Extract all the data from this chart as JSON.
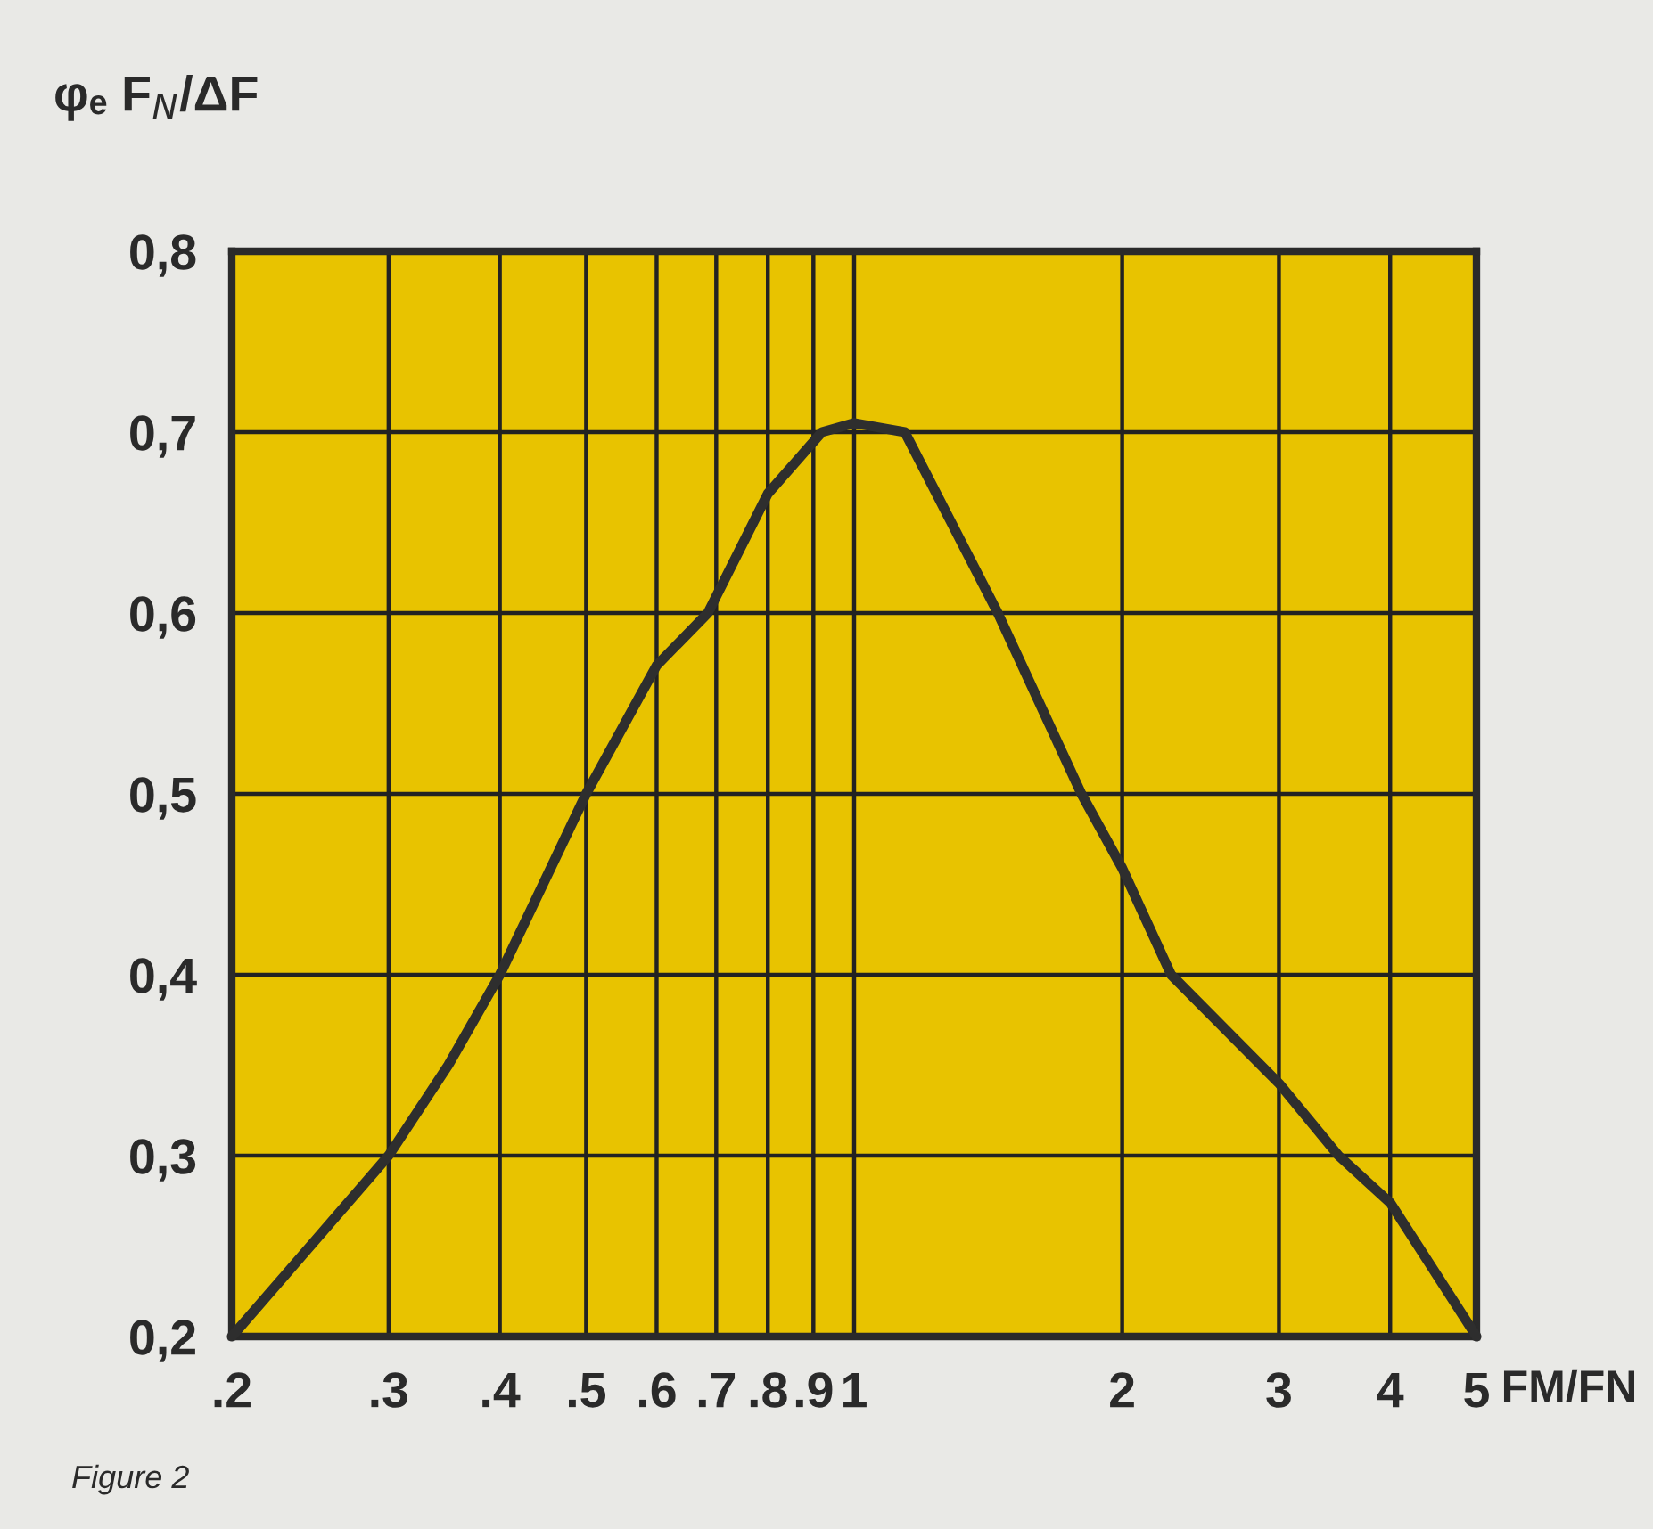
{
  "chart_data": {
    "type": "line",
    "ylabel": "φₑ F$_{N}$/ΔF",
    "xlabel": "FM/FN",
    "annotations": [
      "Figure 2"
    ],
    "log": "x",
    "grid": true,
    "marker": "none",
    "line_style": "solid",
    "x": [
      0.2,
      0.25,
      0.3,
      0.35,
      0.4,
      0.5,
      0.6,
      0.685,
      0.8,
      0.92,
      1.0,
      1.14,
      1.45,
      1.8,
      2,
      2.27,
      3,
      3.5,
      4,
      5
    ],
    "series": [
      {
        "color": "#2e2e2e",
        "values": [
          0.2,
          0.255,
          0.3,
          0.35,
          0.4,
          0.5,
          0.571,
          0.6,
          0.666,
          0.7,
          0.705,
          0.7,
          0.6,
          0.5,
          0.459,
          0.4,
          0.34,
          0.3,
          0.274,
          0.2
        ]
      }
    ],
    "xlim": [
      0.2,
      5
    ],
    "xticks": [
      {
        "value": 0.2,
        "label": ".2"
      },
      {
        "value": 0.3,
        "label": ".3"
      },
      {
        "value": 0.4,
        "label": ".4"
      },
      {
        "value": 0.5,
        "label": ".5"
      },
      {
        "value": 0.6,
        "label": ".6"
      },
      {
        "value": 0.7,
        "label": ".7"
      },
      {
        "value": 0.8,
        "label": ".8"
      },
      {
        "value": 0.9,
        "label": ".9"
      },
      1,
      2,
      3,
      4,
      5
    ],
    "ylim": [
      0.2,
      0.8
    ],
    "yticks": [
      {
        "value": 0.2,
        "label": "0,2"
      },
      {
        "value": 0.3,
        "label": "0,3"
      },
      {
        "value": 0.4,
        "label": "0,4"
      },
      {
        "value": 0.5,
        "label": "0,5"
      },
      {
        "value": 0.6,
        "label": "0,6"
      },
      {
        "value": 0.7,
        "label": "0,7"
      },
      {
        "value": 0.8,
        "label": "0,8"
      }
    ]
  }
}
